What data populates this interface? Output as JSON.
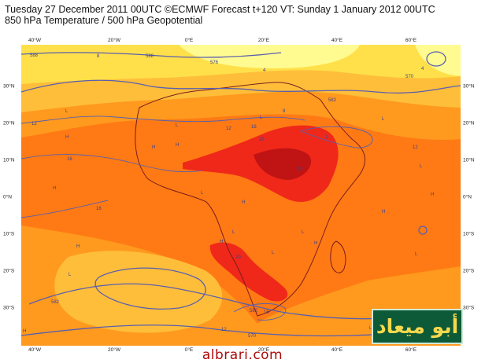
{
  "header": {
    "title_line1": "Tuesday 27 December 2011 00UTC ©ECMWF Forecast t+120 VT: Sunday 1 January 2012 00UTC",
    "title_line2": "850 hPa Temperature / 500 hPa Geopotential"
  },
  "axes": {
    "top": [
      "40°W",
      "20°W",
      "0°E",
      "20°E",
      "40°E",
      "60°E"
    ],
    "bottom": [
      "40°W",
      "20°W",
      "0°E",
      "20°E",
      "40°E",
      "60°E"
    ],
    "left": [
      "30°N",
      "20°N",
      "10°N",
      "0°N",
      "10°S",
      "20°S",
      "30°S"
    ],
    "right": [
      "30°N",
      "20°N",
      "10°N",
      "0°N",
      "10°S",
      "20°S",
      "30°S"
    ]
  },
  "map_labels": {
    "contour_values": [
      "588",
      "582",
      "582",
      "582",
      "576",
      "570",
      "570",
      "588",
      "8",
      "8",
      "12",
      "12",
      "12",
      "12",
      "16",
      "16",
      "16",
      "16",
      "20",
      "20",
      "20",
      "4",
      "4"
    ],
    "high_markers": [
      "H",
      "H",
      "H",
      "H",
      "H",
      "H",
      "H",
      "H",
      "H",
      "H",
      "H"
    ],
    "low_markers": [
      "L",
      "L",
      "L",
      "L",
      "L",
      "L",
      "L",
      "L",
      "L",
      "L",
      "L",
      "L",
      "L"
    ]
  },
  "colors": {
    "pale_yellow": "#fffb90",
    "yellow": "#ffe04a",
    "light_orange": "#ffbe3a",
    "orange": "#ff9a1e",
    "dark_orange": "#ff7a14",
    "red": "#f0281a",
    "dark_red": "#c01414",
    "contour": "#5a5fae",
    "coastline": "#7a1c1c"
  },
  "logo": {
    "arabic_text": "أبو ميعاد"
  },
  "footer": {
    "site": "albrari.com"
  }
}
